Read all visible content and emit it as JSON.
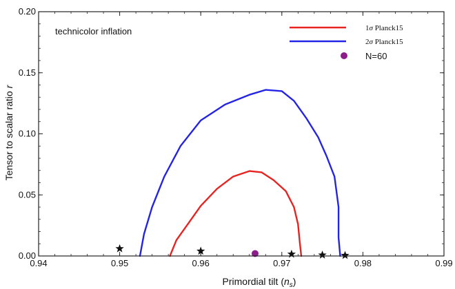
{
  "chart_data": {
    "type": "scatter",
    "annotation": "technicolor inflation",
    "xlabel": "Primordial tilt (",
    "xlabel_var": "n",
    "xlabel_sub": "s",
    "xlabel_close": ")",
    "ylabel": "Tensor to scalar ratio ",
    "ylabel_var": "r",
    "xlim": [
      0.94,
      0.99
    ],
    "ylim": [
      0.0,
      0.2
    ],
    "x_ticks": [
      0.94,
      0.95,
      0.96,
      0.97,
      0.98,
      0.99
    ],
    "x_tick_labels": [
      "0.94",
      "0.95",
      "0.96",
      "0.97",
      "0.98",
      "0.99"
    ],
    "y_ticks": [
      0.0,
      0.05,
      0.1,
      0.15,
      0.2
    ],
    "y_tick_labels": [
      "0.00",
      "0.05",
      "0.10",
      "0.15",
      "0.20"
    ],
    "legend_position": "top-right",
    "contours": [
      {
        "name": "1σ Planck15",
        "legend_prefix": "1",
        "legend_sigma": "σ",
        "legend_suffix": " Planck15",
        "color": "#e8231f",
        "points": [
          [
            0.9562,
            0.0
          ],
          [
            0.957,
            0.013
          ],
          [
            0.9585,
            0.027
          ],
          [
            0.96,
            0.041
          ],
          [
            0.962,
            0.055
          ],
          [
            0.964,
            0.065
          ],
          [
            0.966,
            0.0695
          ],
          [
            0.9675,
            0.0685
          ],
          [
            0.969,
            0.062
          ],
          [
            0.9705,
            0.053
          ],
          [
            0.9715,
            0.04
          ],
          [
            0.972,
            0.026
          ],
          [
            0.9722,
            0.012
          ],
          [
            0.9724,
            0.0
          ]
        ]
      },
      {
        "name": "2σ Planck15",
        "legend_prefix": "2",
        "legend_sigma": "σ",
        "legend_suffix": " Planck15",
        "color": "#2424e6",
        "points": [
          [
            0.9525,
            0.0
          ],
          [
            0.953,
            0.018
          ],
          [
            0.954,
            0.04
          ],
          [
            0.9555,
            0.065
          ],
          [
            0.9575,
            0.09
          ],
          [
            0.96,
            0.111
          ],
          [
            0.963,
            0.124
          ],
          [
            0.966,
            0.132
          ],
          [
            0.968,
            0.136
          ],
          [
            0.97,
            0.135
          ],
          [
            0.9715,
            0.127
          ],
          [
            0.973,
            0.113
          ],
          [
            0.9745,
            0.097
          ],
          [
            0.9755,
            0.082
          ],
          [
            0.9765,
            0.065
          ],
          [
            0.977,
            0.04
          ],
          [
            0.977,
            0.015
          ],
          [
            0.9772,
            0.0
          ]
        ]
      }
    ],
    "points": {
      "name": "N=60",
      "color": "#8b1e8b",
      "values": [
        [
          0.9667,
          0.002
        ]
      ]
    },
    "stars": {
      "color": "#111111",
      "values": [
        [
          0.95,
          0.006
        ],
        [
          0.96,
          0.004
        ],
        [
          0.9712,
          0.0015
        ],
        [
          0.975,
          0.0008
        ],
        [
          0.9778,
          0.0005
        ]
      ]
    }
  }
}
